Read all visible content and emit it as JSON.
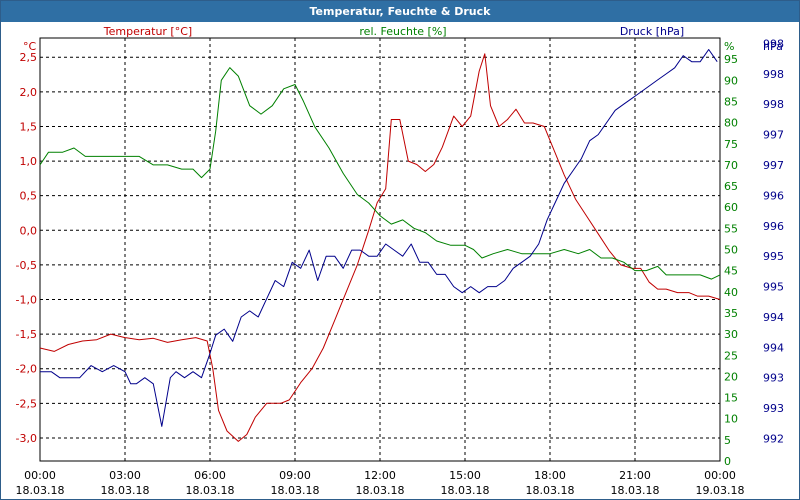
{
  "window": {
    "title": "Temperatur, Feuchte & Druck"
  },
  "chart_data": {
    "type": "line",
    "title": "Temperatur, Feuchte & Druck",
    "grid": true,
    "x_ticks": [
      {
        "hours": 0,
        "time": "00:00",
        "date": "18.03.18"
      },
      {
        "hours": 3,
        "time": "03:00",
        "date": "18.03.18"
      },
      {
        "hours": 6,
        "time": "06:00",
        "date": "18.03.18"
      },
      {
        "hours": 9,
        "time": "09:00",
        "date": "18.03.18"
      },
      {
        "hours": 12,
        "time": "12:00",
        "date": "18.03.18"
      },
      {
        "hours": 15,
        "time": "15:00",
        "date": "18.03.18"
      },
      {
        "hours": 18,
        "time": "18:00",
        "date": "18.03.18"
      },
      {
        "hours": 21,
        "time": "21:00",
        "date": "18.03.18"
      },
      {
        "hours": 24,
        "time": "00:00",
        "date": "19.03.18"
      }
    ],
    "x_range": [
      0,
      24
    ],
    "axes": {
      "temperature": {
        "unit": "°C",
        "label": "Temperatur [°C]",
        "color": "#c00000",
        "range": [
          -3.333,
          2.778
        ],
        "ticks": [
          -3.0,
          -2.5,
          -2.0,
          -1.5,
          -1.0,
          -0.5,
          0.0,
          0.5,
          1.0,
          1.5,
          2.0,
          2.5
        ],
        "tick_labels": [
          "-3,0",
          "-2,5",
          "-2,0",
          "-1,5",
          "-1,0",
          "-0,5",
          "0,0",
          "0,5",
          "1,0",
          "1,5",
          "2,0",
          "2,5"
        ]
      },
      "humidity": {
        "unit": "%",
        "label": "rel. Feuchte [%]",
        "color": "#008000",
        "range": [
          0,
          100
        ],
        "ticks": [
          0,
          5,
          10,
          15,
          20,
          25,
          30,
          35,
          40,
          45,
          50,
          55,
          60,
          65,
          70,
          75,
          80,
          85,
          90,
          95
        ],
        "tick_labels": [
          "0",
          "5",
          "10",
          "15",
          "20",
          "25",
          "30",
          "35",
          "40",
          "45",
          "50",
          "55",
          "60",
          "65",
          "70",
          "75",
          "80",
          "85",
          "90",
          "95"
        ]
      },
      "pressure": {
        "unit": "hPa",
        "label": "Druck [hPa]",
        "color": "#00008b",
        "range": [
          991.63,
          998.59
        ],
        "ticks": [
          992,
          992.5,
          993,
          993.5,
          994,
          994.5,
          995,
          995.5,
          996,
          996.5,
          997,
          997.5,
          998,
          998.5
        ],
        "tick_labels": [
          "992",
          "993",
          "993",
          "994",
          "994",
          "995",
          "995",
          "996",
          "996",
          "997",
          "997",
          "998",
          "998",
          "998"
        ]
      }
    },
    "series": [
      {
        "name": "Temperatur [°C]",
        "axis": "temperature",
        "color": "#c00000",
        "x": [
          0,
          0.5,
          1.0,
          1.5,
          2.0,
          2.5,
          3.0,
          3.5,
          4.0,
          4.5,
          5.0,
          5.5,
          5.9,
          6.1,
          6.3,
          6.6,
          7.0,
          7.3,
          7.6,
          8.0,
          8.5,
          8.8,
          9.2,
          9.6,
          10.0,
          10.4,
          10.8,
          11.2,
          11.6,
          11.9,
          12.2,
          12.4,
          12.7,
          13.0,
          13.3,
          13.6,
          13.9,
          14.2,
          14.6,
          14.9,
          15.2,
          15.5,
          15.7,
          15.9,
          16.2,
          16.5,
          16.8,
          17.1,
          17.4,
          17.8,
          18.1,
          18.5,
          18.9,
          19.3,
          19.7,
          20.1,
          20.5,
          20.9,
          21.2,
          21.5,
          21.8,
          22.1,
          22.5,
          22.9,
          23.2,
          23.6,
          24.0
        ],
        "values": [
          -1.7,
          -1.75,
          -1.65,
          -1.6,
          -1.58,
          -1.5,
          -1.55,
          -1.58,
          -1.56,
          -1.62,
          -1.58,
          -1.55,
          -1.6,
          -2.0,
          -2.6,
          -2.9,
          -3.05,
          -2.95,
          -2.7,
          -2.5,
          -2.5,
          -2.45,
          -2.2,
          -2.0,
          -1.7,
          -1.3,
          -0.9,
          -0.5,
          0.0,
          0.4,
          0.6,
          1.6,
          1.6,
          1.0,
          0.95,
          0.85,
          0.95,
          1.2,
          1.65,
          1.5,
          1.65,
          2.3,
          2.55,
          1.8,
          1.5,
          1.6,
          1.75,
          1.55,
          1.55,
          1.5,
          1.2,
          0.8,
          0.45,
          0.2,
          -0.05,
          -0.3,
          -0.5,
          -0.55,
          -0.55,
          -0.75,
          -0.85,
          -0.85,
          -0.9,
          -0.9,
          -0.95,
          -0.95,
          -1.0
        ]
      },
      {
        "name": "rel. Feuchte [%]",
        "axis": "humidity",
        "color": "#008000",
        "x": [
          0,
          0.3,
          0.8,
          1.2,
          1.6,
          2.0,
          2.5,
          3.0,
          3.5,
          4.0,
          4.5,
          5.0,
          5.4,
          5.7,
          6.0,
          6.2,
          6.4,
          6.7,
          7.0,
          7.4,
          7.8,
          8.2,
          8.6,
          9.0,
          9.3,
          9.7,
          10.2,
          10.7,
          11.2,
          11.6,
          12.0,
          12.4,
          12.8,
          13.2,
          13.6,
          14.0,
          14.5,
          15.0,
          15.3,
          15.6,
          16.0,
          16.5,
          17.0,
          17.5,
          18.0,
          18.5,
          19.0,
          19.4,
          19.8,
          20.2,
          20.6,
          21.0,
          21.4,
          21.8,
          22.1,
          22.5,
          22.9,
          23.3,
          23.7,
          24.0
        ],
        "values": [
          70,
          73,
          73,
          74,
          72,
          72,
          72,
          72,
          72,
          70,
          70,
          69,
          69,
          67,
          69,
          78,
          90,
          93,
          91,
          84,
          82,
          84,
          88,
          89,
          85,
          79,
          74,
          68,
          63,
          61,
          58,
          56,
          57,
          55,
          54,
          52,
          51,
          51,
          50,
          48,
          49,
          50,
          49,
          49,
          49,
          50,
          49,
          50,
          48,
          48,
          47,
          45,
          45,
          46,
          44,
          44,
          44,
          44,
          43,
          44
        ]
      },
      {
        "name": "Druck [hPa]",
        "axis": "pressure",
        "color": "#00008b",
        "x": [
          0,
          0.4,
          0.7,
          1.0,
          1.4,
          1.8,
          2.2,
          2.6,
          3.0,
          3.2,
          3.4,
          3.7,
          4.0,
          4.3,
          4.6,
          4.8,
          5.1,
          5.4,
          5.7,
          6.0,
          6.2,
          6.5,
          6.8,
          7.1,
          7.4,
          7.7,
          8.0,
          8.3,
          8.6,
          8.9,
          9.2,
          9.5,
          9.8,
          10.1,
          10.4,
          10.7,
          11.0,
          11.3,
          11.6,
          11.9,
          12.2,
          12.5,
          12.8,
          13.1,
          13.4,
          13.7,
          14.0,
          14.3,
          14.6,
          14.9,
          15.2,
          15.5,
          15.8,
          16.1,
          16.4,
          16.7,
          17.0,
          17.3,
          17.6,
          17.9,
          18.2,
          18.5,
          18.8,
          19.1,
          19.4,
          19.7,
          20.0,
          20.3,
          20.6,
          20.9,
          21.2,
          21.5,
          21.8,
          22.1,
          22.4,
          22.7,
          23.0,
          23.3,
          23.6,
          23.9
        ],
        "values": [
          993.1,
          993.1,
          993.0,
          993.0,
          993.0,
          993.2,
          993.1,
          993.2,
          993.1,
          992.9,
          992.9,
          993.0,
          992.9,
          992.2,
          993.0,
          993.1,
          993.0,
          993.1,
          993.0,
          993.4,
          993.7,
          993.8,
          993.6,
          994.0,
          994.1,
          994.0,
          994.3,
          994.6,
          994.5,
          994.9,
          994.8,
          995.1,
          994.6,
          995.0,
          995.0,
          994.8,
          995.1,
          995.1,
          995.0,
          995.0,
          995.2,
          995.1,
          995.0,
          995.2,
          994.9,
          994.9,
          994.7,
          994.7,
          994.5,
          994.4,
          994.5,
          994.4,
          994.5,
          994.5,
          994.6,
          994.8,
          994.9,
          995.0,
          995.2,
          995.6,
          995.9,
          996.2,
          996.4,
          996.6,
          996.9,
          997.0,
          997.2,
          997.4,
          997.5,
          997.6,
          997.7,
          997.8,
          997.9,
          998.0,
          998.1,
          998.3,
          998.2,
          998.2,
          998.4,
          998.2
        ]
      }
    ]
  }
}
